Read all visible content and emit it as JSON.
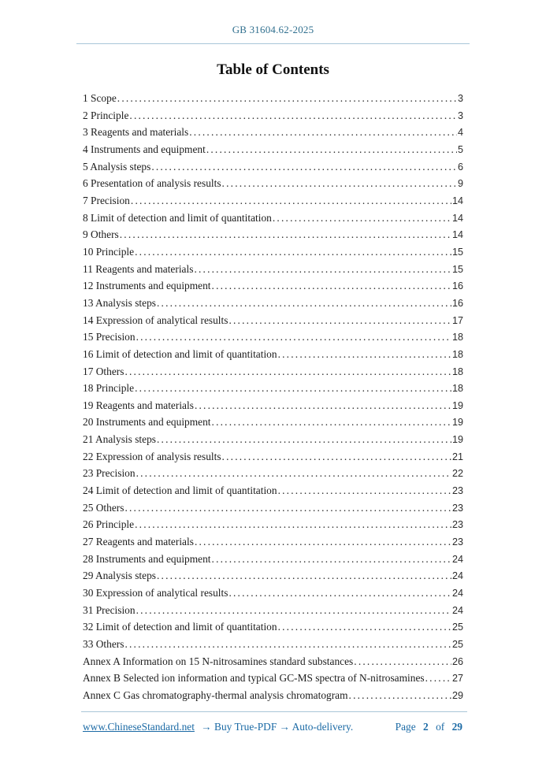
{
  "header": {
    "doc_number": "GB 31604.62-2025"
  },
  "title": "Table of Contents",
  "toc": {
    "entries": [
      {
        "label": "1 Scope",
        "page": "3"
      },
      {
        "label": "2 Principle",
        "page": "3"
      },
      {
        "label": "3 Reagents and materials",
        "page": "4"
      },
      {
        "label": "4 Instruments and equipment",
        "page": "5"
      },
      {
        "label": "5 Analysis steps",
        "page": "6"
      },
      {
        "label": "6 Presentation of analysis results",
        "page": "9"
      },
      {
        "label": "7 Precision",
        "page": "14"
      },
      {
        "label": "8 Limit of detection and limit of quantitation",
        "page": "14"
      },
      {
        "label": "9 Others",
        "page": "14"
      },
      {
        "label": "10 Principle",
        "page": "15"
      },
      {
        "label": "11 Reagents and materials",
        "page": "15"
      },
      {
        "label": "12 Instruments and equipment",
        "page": "16"
      },
      {
        "label": "13 Analysis steps",
        "page": "16"
      },
      {
        "label": "14 Expression of analytical results",
        "page": "17"
      },
      {
        "label": "15 Precision",
        "page": "18"
      },
      {
        "label": "16 Limit of detection and limit of quantitation",
        "page": "18"
      },
      {
        "label": "17 Others",
        "page": "18"
      },
      {
        "label": "18 Principle",
        "page": "18"
      },
      {
        "label": "19 Reagents and materials",
        "page": "19"
      },
      {
        "label": "20 Instruments and equipment",
        "page": "19"
      },
      {
        "label": "21 Analysis steps",
        "page": "19"
      },
      {
        "label": "22 Expression of analysis results",
        "page": "21"
      },
      {
        "label": "23 Precision",
        "page": "22"
      },
      {
        "label": "24 Limit of detection and limit of quantitation",
        "page": "23"
      },
      {
        "label": "25 Others",
        "page": "23"
      },
      {
        "label": "26 Principle",
        "page": "23"
      },
      {
        "label": "27 Reagents and materials",
        "page": "23"
      },
      {
        "label": "28 Instruments and equipment",
        "page": "24"
      },
      {
        "label": "29 Analysis steps",
        "page": "24"
      },
      {
        "label": "30 Expression of analytical results",
        "page": "24"
      },
      {
        "label": "31 Precision",
        "page": "24"
      },
      {
        "label": "32 Limit of detection and limit of quantitation",
        "page": "25"
      },
      {
        "label": "33 Others",
        "page": "25"
      },
      {
        "label": "Annex A Information on 15 N-nitrosamines standard substances",
        "page": "26"
      },
      {
        "label": "Annex B Selected ion information and typical GC-MS spectra of N-nitrosamines",
        "page": "27"
      },
      {
        "label": "Annex C Gas chromatography-thermal analysis chromatogram",
        "page": "29"
      }
    ]
  },
  "footer": {
    "link": "www.ChineseStandard.net",
    "tagline": "→ Buy True-PDF → Auto-delivery.",
    "page_label": "Page",
    "page_current": "2",
    "of_label": "of",
    "page_total": "29"
  },
  "colors": {
    "header_blue": "#31708f",
    "rule_blue": "#a9c6d8",
    "footer_blue": "#1b6aa5",
    "body_text": "#1c1c1c"
  }
}
